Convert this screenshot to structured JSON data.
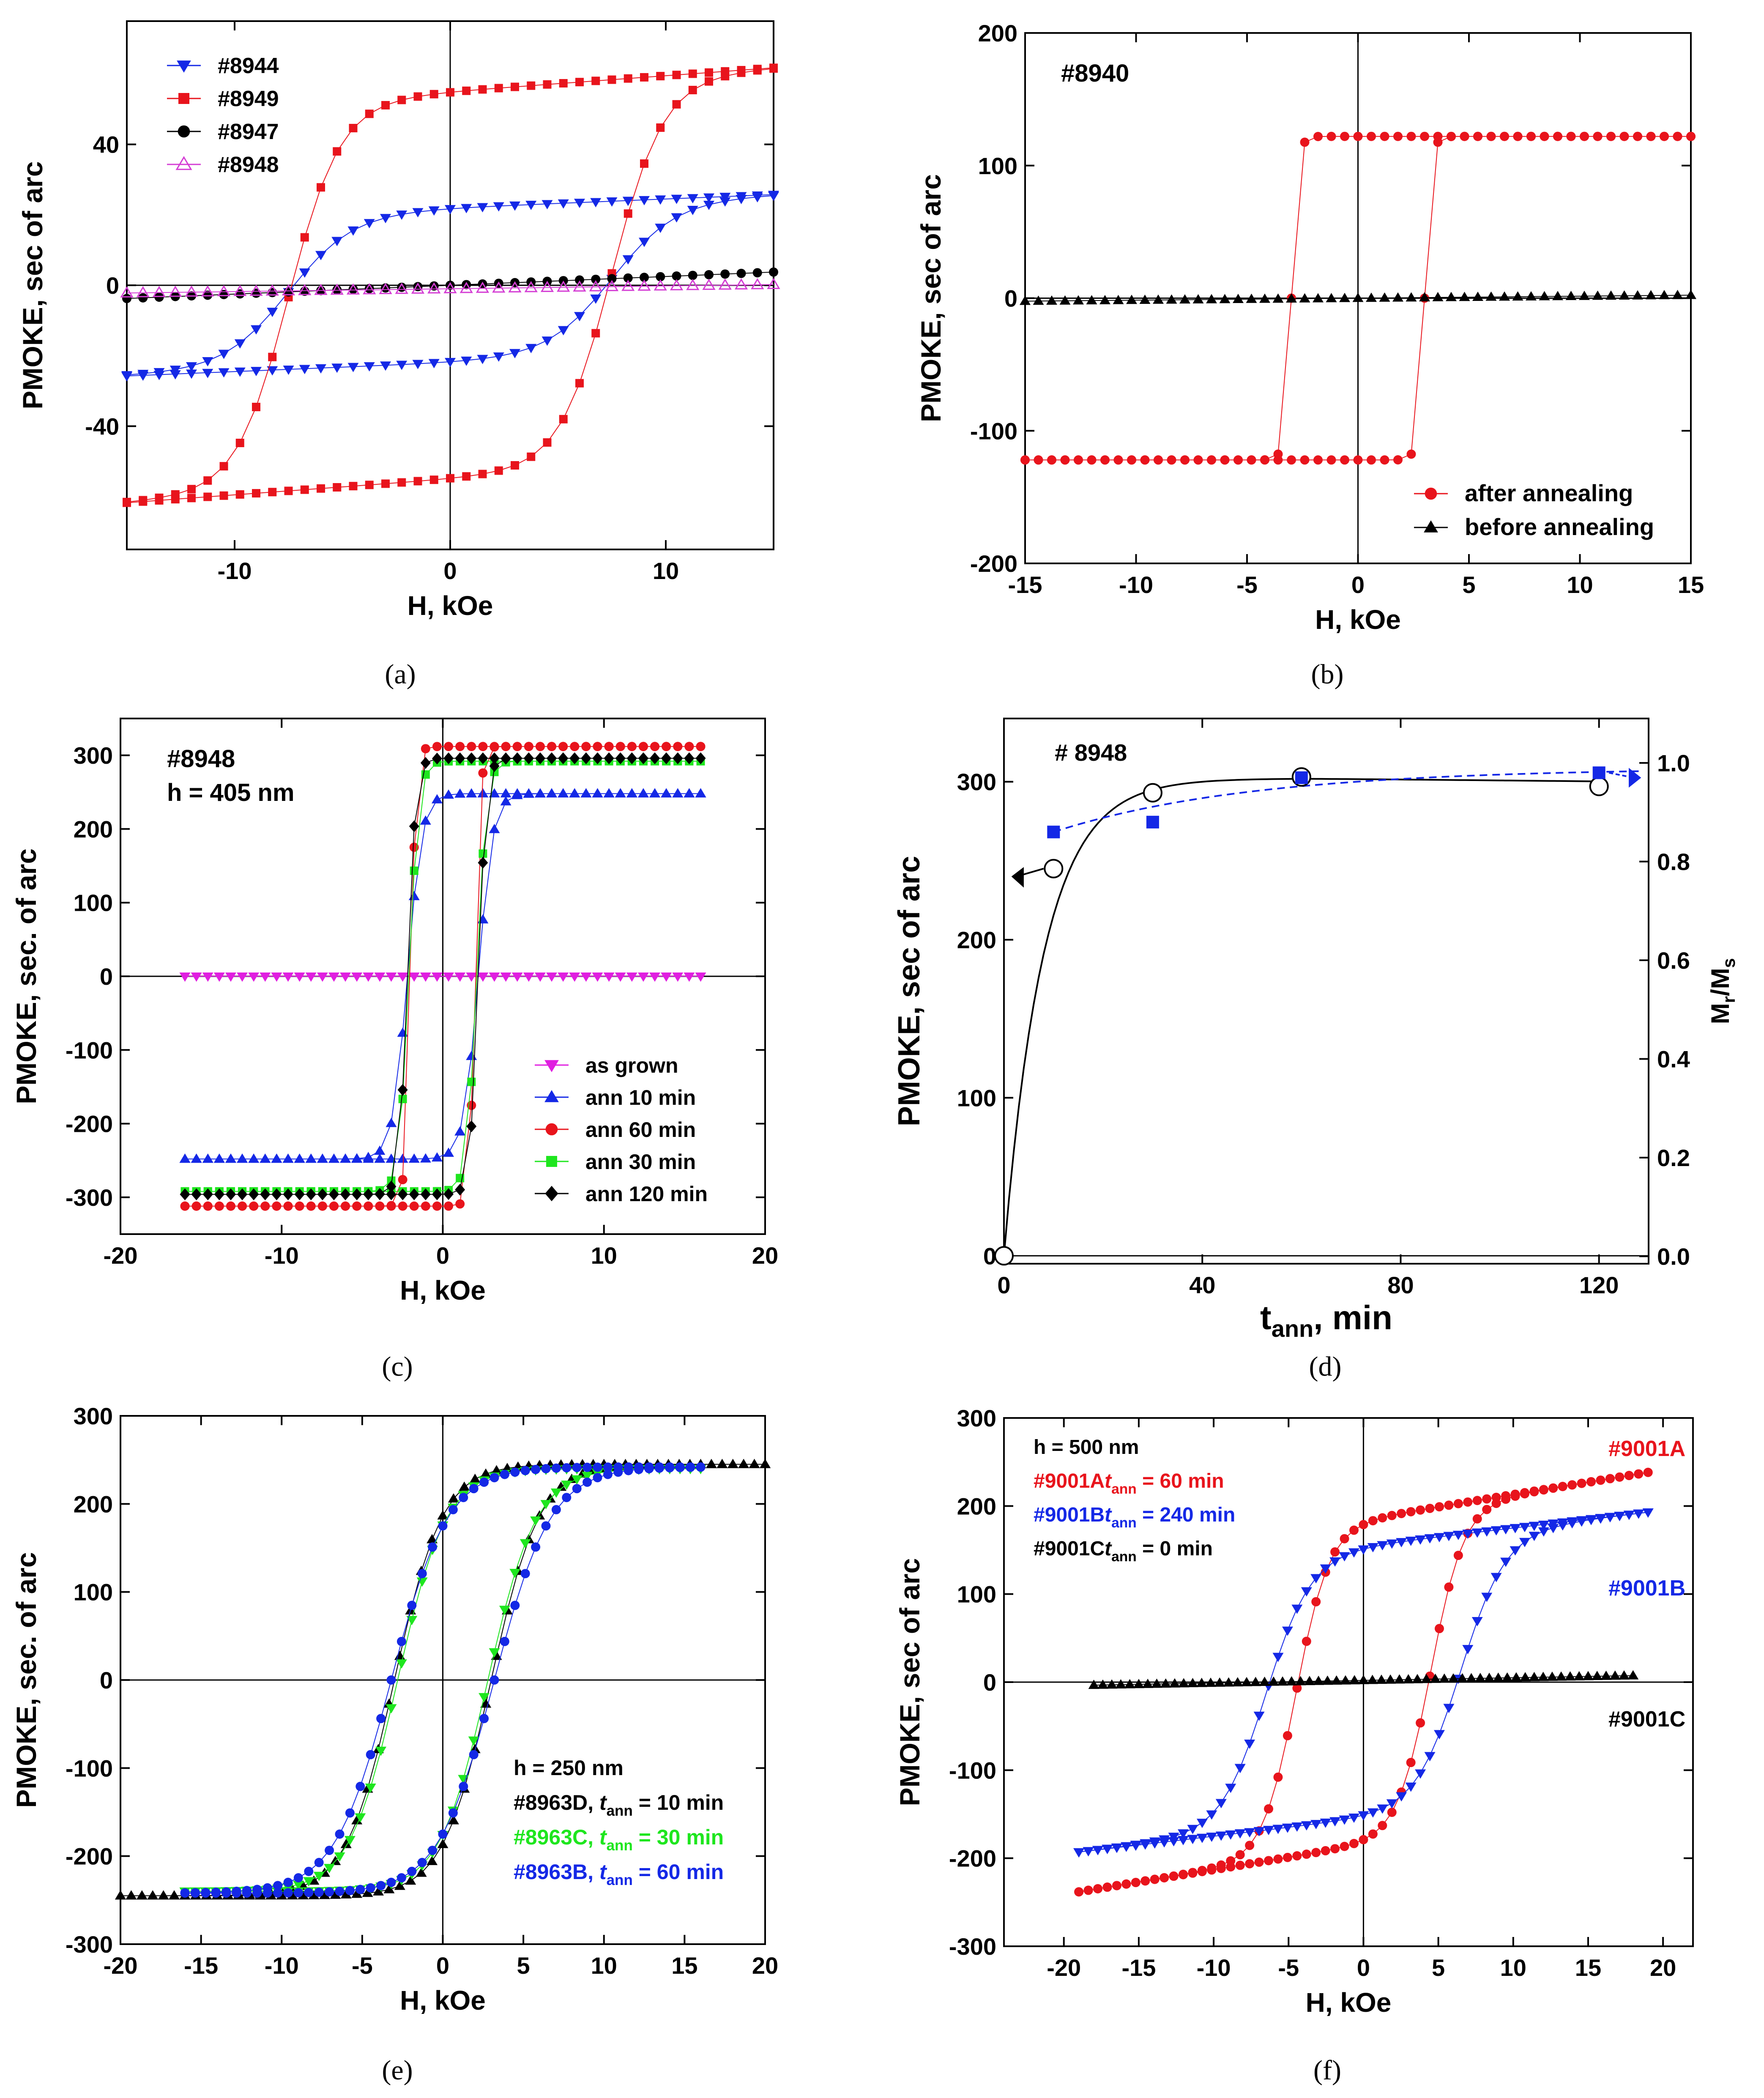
{
  "colors": {
    "red": "#e8141c",
    "blue": "#1428e6",
    "black": "#000000",
    "magenta": "#e01ee0",
    "green": "#1ee61e",
    "pink": "#d43cd4"
  },
  "chart_data": [
    {
      "type": "line",
      "caption": "(a)",
      "xlabel": "H, kOe",
      "ylabel": "PMOKE, sec of arc",
      "xlim": [
        -15,
        15
      ],
      "ylim": [
        -75,
        75
      ],
      "xticks": [
        -10,
        0,
        10
      ],
      "yticks": [
        -40,
        0,
        40
      ],
      "legend_position": "top-left",
      "series": [
        {
          "name": "#8944",
          "color": "#1428e6",
          "marker": "tri-down",
          "model": "hyst",
          "Ms": 22,
          "Hc": 7.5,
          "w": 3.0,
          "slope": 0.25,
          "n": 40
        },
        {
          "name": "#8949",
          "color": "#e8141c",
          "marker": "square",
          "model": "hyst",
          "Ms": 55,
          "Hc": 7.5,
          "w": 2.4,
          "slope": 0.45,
          "n": 40
        },
        {
          "name": "#8947",
          "color": "#000000",
          "marker": "circle",
          "model": "line",
          "slope": 0.25,
          "offset": 0,
          "n": 40
        },
        {
          "name": "#8948",
          "color": "#d43cd4",
          "marker": "tri-up-open",
          "model": "line",
          "slope": 0.08,
          "offset": -1,
          "n": 40
        }
      ]
    },
    {
      "type": "line",
      "caption": "(b)",
      "label": "#8940",
      "xlabel": "H, kOe",
      "ylabel": "PMOKE, sec of arc",
      "xlim": [
        -15,
        15
      ],
      "ylim": [
        -200,
        200
      ],
      "xticks": [
        -15,
        -10,
        -5,
        0,
        5,
        10,
        15
      ],
      "yticks": [
        -200,
        -100,
        0,
        100,
        200
      ],
      "legend_position": "bottom-right",
      "series": [
        {
          "name": "after annealing",
          "color": "#e8141c",
          "marker": "circle",
          "model": "hyst",
          "Ms": 122,
          "Hc": 3.0,
          "w": 0.3,
          "slope": 0,
          "n": 50
        },
        {
          "name": "before annealing",
          "color": "#000000",
          "marker": "tri-up",
          "model": "line",
          "slope": 0.15,
          "offset": 0,
          "n": 50
        }
      ]
    },
    {
      "type": "line",
      "caption": "(c)",
      "label": "#8948",
      "sublabel": "h = 405 nm",
      "xlabel": "H, kOe",
      "ylabel": "PMOKE, sec. of arc",
      "xlim": [
        -20,
        20
      ],
      "ylim": [
        -350,
        350
      ],
      "xticks": [
        -20,
        -10,
        0,
        10,
        20
      ],
      "yticks": [
        -300,
        -200,
        -100,
        0,
        100,
        200,
        300
      ],
      "legend_position": "bottom-right",
      "series": [
        {
          "name": "as grown",
          "color": "#e01ee0",
          "marker": "tri-down",
          "model": "line",
          "slope": 0,
          "offset": 0,
          "xr": 16,
          "n": 45
        },
        {
          "name": "ann 10 min",
          "color": "#1428e6",
          "marker": "tri-up",
          "model": "hyst",
          "Ms": 248,
          "Hc": 2.2,
          "w": 0.9,
          "slope": 0,
          "xr": 16,
          "n": 45
        },
        {
          "name": "ann  60 min",
          "color": "#e8141c",
          "marker": "circle",
          "model": "hyst",
          "Ms": 312,
          "Hc": 2.0,
          "w": 0.35,
          "slope": 0,
          "xr": 16,
          "n": 45
        },
        {
          "name": "ann  30 min",
          "color": "#1ee61e",
          "marker": "square",
          "model": "hyst",
          "Ms": 292,
          "Hc": 2.1,
          "w": 0.6,
          "slope": 0,
          "xr": 16,
          "n": 45
        },
        {
          "name": "ann  120 min",
          "color": "#000000",
          "marker": "diamond",
          "model": "hyst",
          "Ms": 296,
          "Hc": 2.2,
          "w": 0.5,
          "slope": 0,
          "xr": 16,
          "n": 45
        }
      ]
    },
    {
      "type": "scatter",
      "caption": "(d)",
      "label": "# 8948",
      "xlabel": "t",
      "xlabel_sub": "ann",
      "xlabel_suffix": ", min",
      "ylabel": "PMOKE, sec of arc",
      "y2label": "M",
      "y2label_sub": "r",
      "y2label_mid": "/M",
      "y2label_sub2": "s",
      "xlim": [
        0,
        130
      ],
      "ylim": [
        -5,
        340
      ],
      "y2lim": [
        -0.015,
        1.09
      ],
      "xticks": [
        0,
        40,
        80,
        120
      ],
      "yticks": [
        0,
        100,
        200,
        300
      ],
      "y2ticks": [
        "0.0",
        "0.2",
        "0.4",
        "0.6",
        "0.8",
        "1.0"
      ],
      "series": [
        {
          "name": "PMOKE",
          "axis": "left",
          "color": "#000000",
          "marker": "circle-open",
          "x": [
            0,
            10,
            30,
            60,
            120
          ],
          "y": [
            0,
            245,
            293,
            303,
            297
          ]
        },
        {
          "name": "Mr/Ms",
          "axis": "right",
          "color": "#1428e6",
          "marker": "square",
          "x": [
            10,
            30,
            60,
            120
          ],
          "y": [
            0.86,
            0.88,
            0.97,
            0.98
          ]
        }
      ]
    },
    {
      "type": "line",
      "caption": "(e)",
      "xlabel": "H, kOe",
      "ylabel": "PMOKE, sec. of arc",
      "xlim": [
        -20,
        20
      ],
      "ylim": [
        -300,
        300
      ],
      "xticks": [
        -20,
        -15,
        -10,
        -5,
        0,
        5,
        10,
        15,
        20
      ],
      "yticks": [
        -300,
        -200,
        -100,
        0,
        100,
        200,
        300
      ],
      "legend_position": "bottom-right",
      "legend_header": "h = 250 nm",
      "series": [
        {
          "name": "#8963D, ",
          "tann": "t",
          "tann_sub": "ann",
          "suffix": " = 10 min",
          "color": "#000000",
          "marker": "tri-up",
          "model": "hyst",
          "Ms": 245,
          "Hc": 3.0,
          "w": 3.0,
          "slope": 0,
          "xr": 20,
          "n": 60
        },
        {
          "name": "#8963C, ",
          "tann": "t",
          "tann_sub": "ann",
          "suffix": " = 30 min",
          "color": "#1ee61e",
          "marker": "tri-down",
          "model": "hyst",
          "Ms": 240,
          "Hc": 2.8,
          "w": 3.0,
          "slope": 0,
          "xr": 16,
          "n": 50
        },
        {
          "name": "#8963B, ",
          "tann": "t",
          "tann_sub": "ann",
          "suffix": " = 60 min",
          "color": "#1428e6",
          "marker": "circle",
          "model": "hyst",
          "Ms": 242,
          "Hc": 3.2,
          "w": 3.5,
          "slope": 0,
          "xr": 16,
          "n": 50
        }
      ]
    },
    {
      "type": "line",
      "caption": "(f)",
      "xlabel": "H, kOe",
      "ylabel": "PMOKE, sec of arc",
      "xlim": [
        -24,
        22
      ],
      "ylim": [
        -300,
        300
      ],
      "xticks": [
        -20,
        -15,
        -10,
        -5,
        0,
        5,
        10,
        15,
        20
      ],
      "yticks": [
        -300,
        -200,
        -100,
        0,
        100,
        200,
        300
      ],
      "legend_position": "top-left",
      "legend_header": "h = 500 nm",
      "series": [
        {
          "name": "#9001A",
          "tann": "t",
          "tann_sub": "ann",
          "suffix": " = 60 min",
          "color": "#e8141c",
          "marker": "circle",
          "model": "hyst",
          "Ms": 185,
          "Hc": 4.5,
          "w": 2.2,
          "slope": 2.8,
          "xr": 19,
          "n": 60,
          "tag": "#9001A"
        },
        {
          "name": "#9001B",
          "tann": "t",
          "tann_sub": "ann",
          "suffix": " = 240 min",
          "color": "#1428e6",
          "marker": "tri-down",
          "model": "hyst",
          "Ms": 155,
          "Hc": 6.5,
          "w": 3.0,
          "slope": 2.0,
          "xr": 19,
          "n": 60,
          "tag": "#9001B"
        },
        {
          "name": "#9001C",
          "tann": "t",
          "tann_sub": "ann",
          "suffix": " = 0 min",
          "color": "#000000",
          "marker": "tri-up",
          "model": "line",
          "slope": 0.3,
          "offset": 2,
          "xr": 18,
          "n": 60,
          "tag": "#9001C"
        }
      ]
    }
  ]
}
